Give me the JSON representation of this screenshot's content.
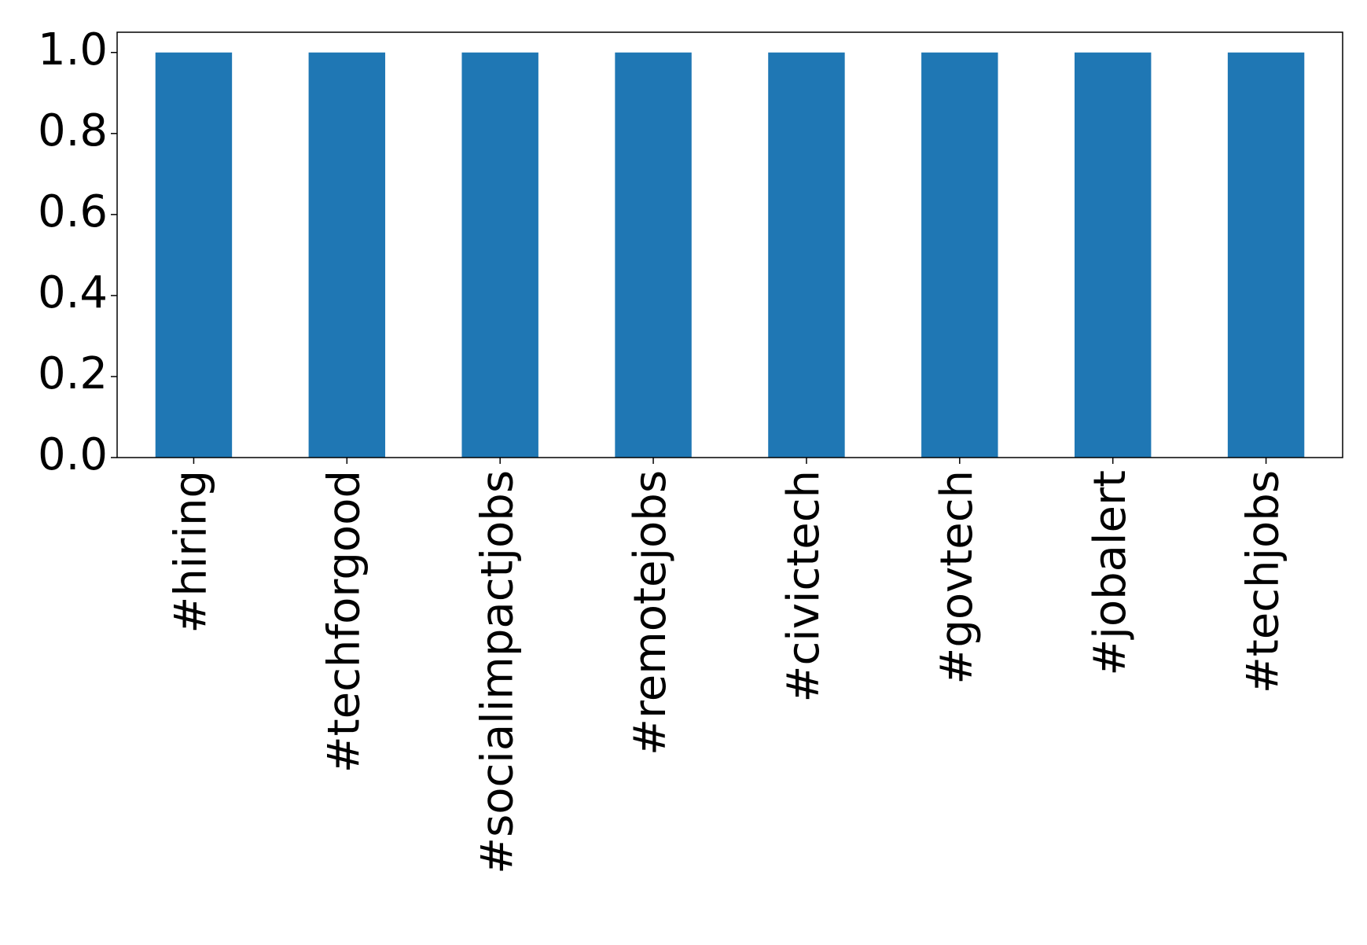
{
  "chart_data": {
    "type": "bar",
    "categories": [
      "#hiring",
      "#techforgood",
      "#socialimpactjobs",
      "#remotejobs",
      "#civictech",
      "#govtech",
      "#jobalert",
      "#techjobs"
    ],
    "values": [
      1,
      1,
      1,
      1,
      1,
      1,
      1,
      1
    ],
    "color": "#1f77b4",
    "ylim": [
      0,
      1.05
    ],
    "yticks": [
      {
        "value": 0,
        "label": "0.0"
      },
      0.2,
      0.4,
      0.6,
      0.8,
      {
        "value": 1,
        "label": "1.0"
      }
    ],
    "grid": false
  }
}
